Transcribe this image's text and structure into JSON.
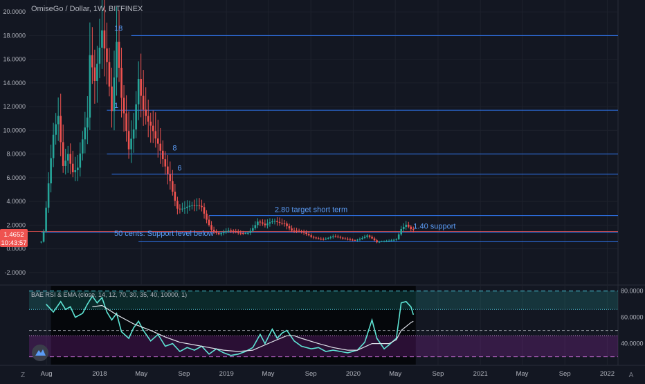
{
  "header": {
    "title": "OmiseGo / Dollar, 1W, BITFINEX"
  },
  "colors": {
    "bg": "#131722",
    "grid": "#1e222d",
    "up": "#26a69a",
    "down": "#ef5350",
    "hline": "#3179f5",
    "annot": "#5b9cf6",
    "text": "#b2b5be",
    "rsi": "#5ee5d5",
    "ema": "#e0e3eb",
    "price_label": "#ef5350"
  },
  "price_tag": {
    "value": "1.4652",
    "countdown": "10:43:57"
  },
  "x_axis": {
    "ticks": [
      "Aug",
      "2018",
      "May",
      "Sep",
      "2019",
      "May",
      "Sep",
      "2020",
      "May",
      "Sep",
      "2021",
      "May",
      "Sep",
      "2022"
    ]
  },
  "bottom_left_label": "Z",
  "bottom_right_label": "A",
  "indicator": {
    "title": "BAE RSI & EMA (close, 14, 12, 70, 30, 35, 40, 10000, 1)",
    "y_ticks": [
      "80.0000",
      "60.0000",
      "40.0000"
    ],
    "logo_icon": "tradingview-icon"
  },
  "chart_data": [
    {
      "type": "candlestick",
      "title": "OmiseGo / Dollar, 1W, BITFINEX",
      "ylim": [
        -3,
        21
      ],
      "y_ticks": [
        "20.0000",
        "18.0000",
        "16.0000",
        "14.0000",
        "12.0000",
        "10.0000",
        "8.0000",
        "6.0000",
        "4.0000",
        "2.0000",
        "0.0000",
        "-2.0000"
      ],
      "current_price": 1.4652,
      "close_path": [
        [
          "2017-07-17",
          0.6
        ],
        [
          "2017-07-24",
          1.4
        ],
        [
          "2017-08-07",
          5.0
        ],
        [
          "2017-08-21",
          8.8
        ],
        [
          "2017-09-04",
          11.0
        ],
        [
          "2017-09-18",
          7.5
        ],
        [
          "2017-10-02",
          9.0
        ],
        [
          "2017-10-16",
          7.0
        ],
        [
          "2017-10-30",
          6.8
        ],
        [
          "2017-11-13",
          8.5
        ],
        [
          "2017-11-27",
          10.0
        ],
        [
          "2017-12-04",
          15.0
        ],
        [
          "2017-12-18",
          14.0
        ],
        [
          "2018-01-08",
          20.5
        ],
        [
          "2018-01-22",
          17.5
        ],
        [
          "2018-02-05",
          12.0
        ],
        [
          "2018-02-19",
          16.5
        ],
        [
          "2018-03-05",
          11.5
        ],
        [
          "2018-03-26",
          8.0
        ],
        [
          "2018-04-09",
          10.5
        ],
        [
          "2018-04-23",
          16.0
        ],
        [
          "2018-05-07",
          13.0
        ],
        [
          "2018-05-21",
          11.0
        ],
        [
          "2018-06-11",
          8.5
        ],
        [
          "2018-07-02",
          7.0
        ],
        [
          "2018-07-23",
          6.0
        ],
        [
          "2018-08-13",
          3.8
        ],
        [
          "2018-09-03",
          3.5
        ],
        [
          "2018-10-01",
          3.3
        ],
        [
          "2018-10-22",
          3.4
        ],
        [
          "2018-11-19",
          1.8
        ],
        [
          "2018-12-10",
          1.3
        ],
        [
          "2019-01-07",
          1.4
        ],
        [
          "2019-02-04",
          1.3
        ],
        [
          "2019-03-04",
          1.5
        ],
        [
          "2019-04-01",
          2.3
        ],
        [
          "2019-04-22",
          1.8
        ],
        [
          "2019-05-20",
          2.3
        ],
        [
          "2019-06-17",
          2.4
        ],
        [
          "2019-07-08",
          1.6
        ],
        [
          "2019-08-05",
          1.3
        ],
        [
          "2019-09-02",
          1.0
        ],
        [
          "2019-10-07",
          0.9
        ],
        [
          "2019-11-04",
          1.0
        ],
        [
          "2019-12-02",
          0.8
        ],
        [
          "2020-01-06",
          0.8
        ],
        [
          "2020-02-10",
          1.1
        ],
        [
          "2020-03-09",
          0.5
        ],
        [
          "2020-04-06",
          0.7
        ],
        [
          "2020-05-04",
          0.9
        ],
        [
          "2020-05-18",
          1.7
        ],
        [
          "2020-06-01",
          1.9
        ],
        [
          "2020-06-15",
          1.5
        ],
        [
          "2020-06-22",
          1.4652
        ]
      ],
      "horizontal_levels": [
        {
          "price": 18.0,
          "from": "2018-04-02"
        },
        {
          "price": 11.7,
          "from": "2018-01-22"
        },
        {
          "price": 8.0,
          "from": "2018-01-22"
        },
        {
          "price": 6.3,
          "from": "2018-02-05"
        },
        {
          "price": 2.8,
          "from": "2018-11-12"
        },
        {
          "price": 1.4,
          "from": "2017-07-17"
        },
        {
          "price": 0.6,
          "from": "2018-04-23"
        }
      ],
      "annotations": [
        {
          "text": "18",
          "date": "2018-02-12",
          "price": 18.4
        },
        {
          "text": "1",
          "date": "2018-02-12",
          "price": 11.9
        },
        {
          "text": "8",
          "date": "2018-07-30",
          "price": 8.3
        },
        {
          "text": "6",
          "date": "2018-08-13",
          "price": 6.6
        },
        {
          "text": "2.80 target short term",
          "date": "2019-05-20",
          "price": 3.1
        },
        {
          "text": "1.40 support",
          "date": "2020-06-22",
          "price": 1.7
        },
        {
          "text": "50 cents. Support level below",
          "date": "2018-02-12",
          "price": 1.1
        }
      ]
    },
    {
      "type": "line",
      "title": "BAE RSI & EMA (close, 14, 12, 70, 30, 35, 40, 10000, 1)",
      "ylim": [
        24,
        84
      ],
      "levels": [
        80,
        66,
        50,
        46,
        30
      ],
      "series": [
        {
          "points": [
            [
              "2017-07-31",
              70
            ],
            [
              "2017-08-21",
              64
            ],
            [
              "2017-09-11",
              72
            ],
            [
              "2017-09-25",
              66
            ],
            [
              "2017-10-09",
              68
            ],
            [
              "2017-10-23",
              60
            ],
            [
              "2017-11-13",
              63
            ],
            [
              "2017-11-27",
              70
            ],
            [
              "2017-12-11",
              76
            ],
            [
              "2017-12-25",
              71
            ],
            [
              "2018-01-08",
              75
            ],
            [
              "2018-01-22",
              64
            ],
            [
              "2018-02-05",
              58
            ],
            [
              "2018-02-19",
              63
            ],
            [
              "2018-03-05",
              49
            ],
            [
              "2018-03-26",
              44
            ],
            [
              "2018-04-09",
              52
            ],
            [
              "2018-04-23",
              57
            ],
            [
              "2018-05-07",
              50
            ],
            [
              "2018-05-28",
              42
            ],
            [
              "2018-06-18",
              47
            ],
            [
              "2018-07-09",
              38
            ],
            [
              "2018-07-30",
              40
            ],
            [
              "2018-08-20",
              34
            ],
            [
              "2018-09-10",
              37
            ],
            [
              "2018-10-01",
              35
            ],
            [
              "2018-10-22",
              38
            ],
            [
              "2018-11-12",
              32
            ],
            [
              "2018-12-03",
              36
            ],
            [
              "2018-12-24",
              33
            ],
            [
              "2019-01-14",
              31
            ],
            [
              "2019-02-04",
              32
            ],
            [
              "2019-02-25",
              34
            ],
            [
              "2019-03-18",
              37
            ],
            [
              "2019-04-08",
              47
            ],
            [
              "2019-04-22",
              40
            ],
            [
              "2019-05-13",
              51
            ],
            [
              "2019-05-27",
              44
            ],
            [
              "2019-06-10",
              48
            ],
            [
              "2019-06-24",
              50
            ],
            [
              "2019-07-15",
              42
            ],
            [
              "2019-08-05",
              38
            ],
            [
              "2019-09-02",
              36
            ],
            [
              "2019-09-23",
              37
            ],
            [
              "2019-10-14",
              34
            ],
            [
              "2019-11-04",
              35
            ],
            [
              "2019-11-25",
              34
            ],
            [
              "2019-12-16",
              33
            ],
            [
              "2020-01-13",
              35
            ],
            [
              "2020-02-03",
              41
            ],
            [
              "2020-02-24",
              58
            ],
            [
              "2020-03-09",
              44
            ],
            [
              "2020-03-30",
              36
            ],
            [
              "2020-04-13",
              39
            ],
            [
              "2020-05-04",
              44
            ],
            [
              "2020-05-18",
              71
            ],
            [
              "2020-06-01",
              72
            ],
            [
              "2020-06-15",
              68
            ],
            [
              "2020-06-22",
              62
            ]
          ]
        },
        {
          "points": [
            [
              "2017-12-11",
              68
            ],
            [
              "2018-01-08",
              69
            ],
            [
              "2018-02-19",
              62
            ],
            [
              "2018-04-09",
              55
            ],
            [
              "2018-05-28",
              50
            ],
            [
              "2018-07-09",
              45
            ],
            [
              "2018-08-20",
              41
            ],
            [
              "2018-10-01",
              39
            ],
            [
              "2018-11-12",
              37
            ],
            [
              "2018-12-24",
              35
            ],
            [
              "2019-02-04",
              34
            ],
            [
              "2019-03-18",
              35
            ],
            [
              "2019-04-22",
              39
            ],
            [
              "2019-05-27",
              43
            ],
            [
              "2019-06-24",
              46
            ],
            [
              "2019-07-15",
              46
            ],
            [
              "2019-08-05",
              44
            ],
            [
              "2019-09-23",
              40
            ],
            [
              "2019-11-04",
              37
            ],
            [
              "2019-12-16",
              35
            ],
            [
              "2020-01-13",
              35
            ],
            [
              "2020-02-24",
              40
            ],
            [
              "2020-03-30",
              40
            ],
            [
              "2020-04-13",
              40
            ],
            [
              "2020-05-04",
              43
            ],
            [
              "2020-05-18",
              50
            ],
            [
              "2020-06-15",
              56
            ],
            [
              "2020-06-22",
              57
            ]
          ]
        }
      ]
    }
  ]
}
